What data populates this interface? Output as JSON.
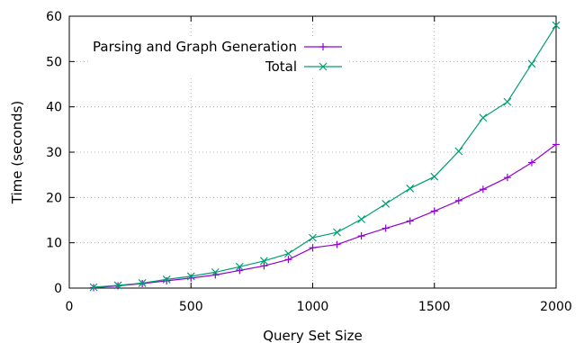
{
  "chart_data": {
    "type": "line",
    "xlabel": "Query Set Size",
    "ylabel": "Time (seconds)",
    "xlim": [
      0,
      2000
    ],
    "ylim": [
      0,
      60
    ],
    "xticks": [
      0,
      500,
      1000,
      1500,
      2000
    ],
    "yticks": [
      0,
      10,
      20,
      30,
      40,
      50,
      60
    ],
    "grid": true,
    "grid_style": "dotted",
    "legend_position": "top-left",
    "x": [
      100,
      200,
      300,
      400,
      500,
      600,
      700,
      800,
      900,
      1000,
      1100,
      1200,
      1300,
      1400,
      1500,
      1600,
      1700,
      1800,
      1900,
      2000
    ],
    "series": [
      {
        "name": "Parsing and Graph Generation",
        "color": "#9400d3",
        "marker": "plus",
        "values": [
          0.1,
          0.5,
          1.0,
          1.6,
          2.2,
          2.9,
          3.9,
          4.9,
          6.3,
          8.9,
          9.6,
          11.5,
          13.2,
          14.8,
          17.0,
          19.3,
          21.8,
          24.4,
          27.7,
          31.7
        ]
      },
      {
        "name": "Total",
        "color": "#009e73",
        "marker": "cross",
        "values": [
          0.2,
          0.6,
          1.1,
          1.9,
          2.6,
          3.5,
          4.7,
          6.0,
          7.6,
          11.1,
          12.3,
          15.2,
          18.6,
          22.0,
          24.6,
          30.2,
          37.6,
          41.1,
          49.5,
          58.0
        ]
      }
    ]
  }
}
